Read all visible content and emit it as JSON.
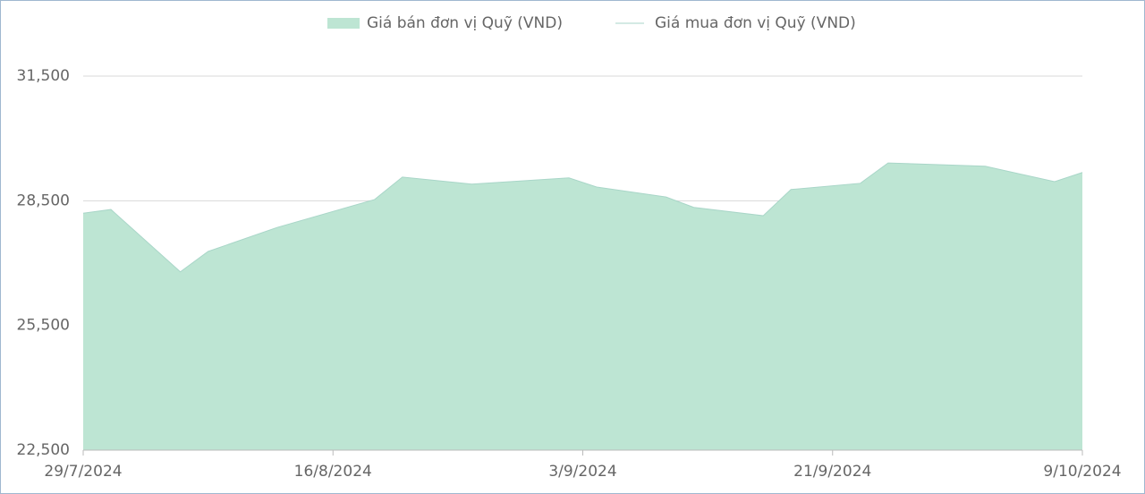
{
  "chart_data": {
    "type": "area",
    "x": [
      "29/7/2024",
      "31/7/2024",
      "5/8/2024",
      "7/8/2024",
      "12/8/2024",
      "19/8/2024",
      "21/8/2024",
      "26/8/2024",
      "2/9/2024",
      "4/9/2024",
      "9/9/2024",
      "11/9/2024",
      "16/9/2024",
      "18/9/2024",
      "23/9/2024",
      "25/9/2024",
      "2/10/2024",
      "7/10/2024",
      "9/10/2024"
    ],
    "series": [
      {
        "name": "Giá bán đơn vị Quỹ (VND)",
        "color": "#bde5d3",
        "kind": "area",
        "values": [
          28200,
          28290,
          26790,
          27280,
          27860,
          28530,
          29070,
          28900,
          29050,
          28830,
          28590,
          28340,
          28140,
          28770,
          28920,
          29410,
          29330,
          28960,
          29180
        ]
      },
      {
        "name": "Giá mua đơn vị Quỹ (VND)",
        "color": "#a9d6c8",
        "kind": "line",
        "values": [
          28200,
          28290,
          26790,
          27280,
          27860,
          28530,
          29070,
          28900,
          29050,
          28830,
          28590,
          28340,
          28140,
          28770,
          28920,
          29410,
          29330,
          28960,
          29180
        ]
      }
    ],
    "xlim": [
      "29/7/2024",
      "9/10/2024"
    ],
    "xticks": [
      "29/7/2024",
      "16/8/2024",
      "3/9/2024",
      "21/9/2024",
      "9/10/2024"
    ],
    "ylim": [
      22500,
      31500
    ],
    "yticks": [
      {
        "value": 22500,
        "label": "22,500"
      },
      {
        "value": 25500,
        "label": "25,500"
      },
      {
        "value": 28500,
        "label": "28,500"
      },
      {
        "value": 31500,
        "label": "31,500"
      }
    ],
    "grid": true
  }
}
